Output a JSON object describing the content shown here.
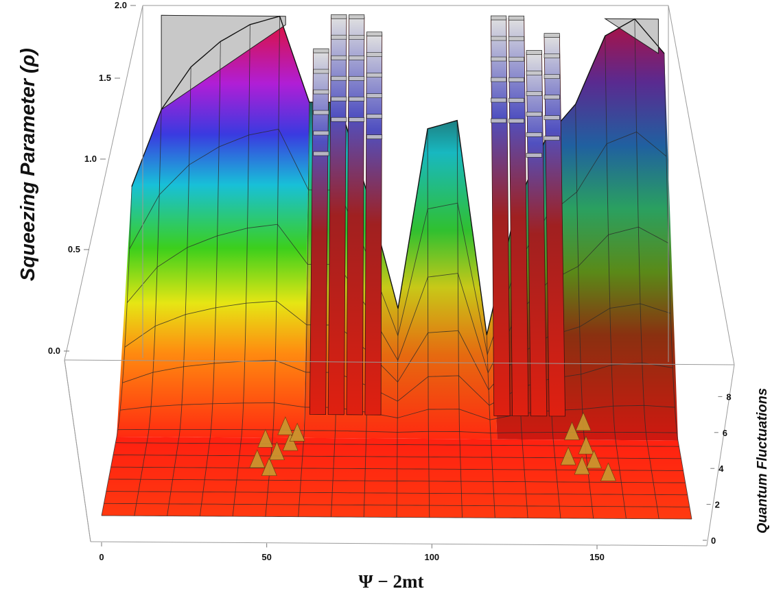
{
  "chart_data": {
    "type": "surface3d",
    "title": "",
    "xlabel": "Ψ − 2mt",
    "ylabel": "Quantum Fluctuations",
    "zlabel": "Squeezing Parameter (ρ)",
    "x_ticks": [
      "0",
      "50",
      "100",
      "150"
    ],
    "y_ticks": [
      "0",
      "2",
      "4",
      "6",
      "8"
    ],
    "z_ticks": [
      "2.0",
      "1.5",
      "1.0",
      "0.5",
      "0.0"
    ],
    "xlim": [
      0,
      180
    ],
    "ylim": [
      0,
      10
    ],
    "zlim": [
      0,
      2
    ],
    "colormap": "rainbow (red low → yellow → green → cyan → blue → magenta high)",
    "clip_color": "#c8c8c8",
    "grid": true,
    "boxed": true,
    "x_sample": [
      0,
      10,
      20,
      30,
      40,
      50,
      60,
      70,
      80,
      90,
      100,
      110,
      120,
      130,
      140,
      150,
      160,
      170,
      180
    ],
    "profile_back": [
      1.0,
      1.45,
      1.7,
      1.85,
      1.95,
      2.0,
      1.5,
      1.5,
      0.95,
      0.3,
      1.35,
      1.4,
      0.15,
      0.9,
      1.3,
      1.5,
      1.9,
      2.0,
      1.8
    ],
    "spike_x": [
      64,
      70,
      76,
      82,
      124,
      130,
      136,
      142
    ],
    "spike_height": [
      1.8,
      2.0,
      2.0,
      1.9,
      2.0,
      2.0,
      1.8,
      1.9
    ]
  }
}
